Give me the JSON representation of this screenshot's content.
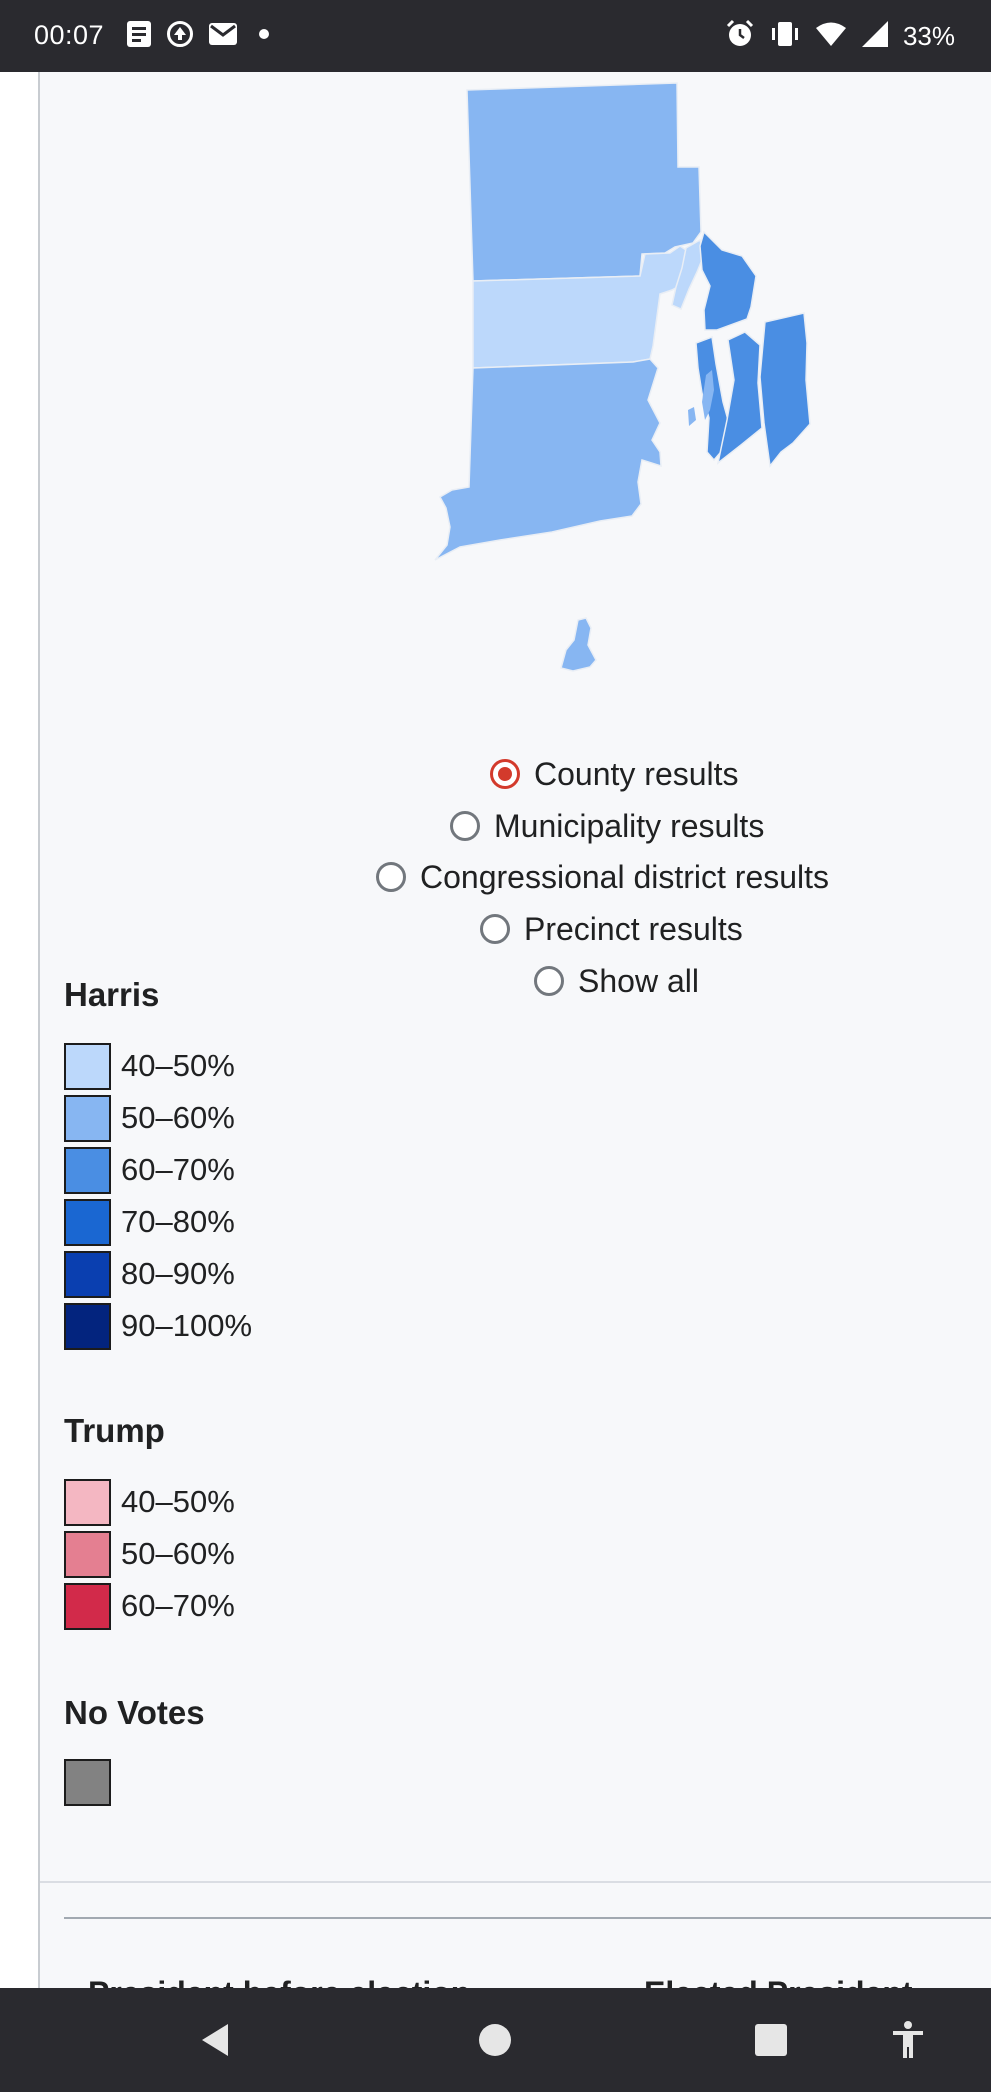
{
  "status_bar": {
    "time": "00:07",
    "battery": "33%",
    "left_icons": [
      "notes-icon",
      "sync-icon",
      "mail-icon",
      "dot-icon"
    ],
    "right_icons": [
      "alarm-icon",
      "vibrate-icon",
      "wifi-icon",
      "signal-icon"
    ]
  },
  "map": {
    "counties": [
      {
        "name": "Providence",
        "color": "#87b6f2",
        "bin": "50–60%"
      },
      {
        "name": "Kent",
        "color": "#bcd8fb",
        "bin": "40–50%"
      },
      {
        "name": "Washington",
        "color": "#87b6f2",
        "bin": "50–60%"
      },
      {
        "name": "Bristol",
        "color": "#bcd8fb",
        "bin": "40–50%"
      },
      {
        "name": "Newport",
        "color": "#4a8ee3",
        "bin": "60–70%"
      }
    ]
  },
  "view_options": {
    "selected": "County results",
    "items": [
      {
        "label": "County results",
        "checked": true
      },
      {
        "label": "Municipality results",
        "checked": false
      },
      {
        "label": "Congressional district results",
        "checked": false
      },
      {
        "label": "Precinct results",
        "checked": false
      },
      {
        "label": "Show all",
        "checked": false
      }
    ]
  },
  "legend": {
    "harris": {
      "title": "Harris",
      "items": [
        {
          "label": "40–50%",
          "color": "#bcd8fb"
        },
        {
          "label": "50–60%",
          "color": "#87b6f2"
        },
        {
          "label": "60–70%",
          "color": "#4a8ee3"
        },
        {
          "label": "70–80%",
          "color": "#1a67d2"
        },
        {
          "label": "80–90%",
          "color": "#0a3fb0"
        },
        {
          "label": "90–100%",
          "color": "#03247e"
        }
      ]
    },
    "trump": {
      "title": "Trump",
      "items": [
        {
          "label": "40–50%",
          "color": "#f4b7c2"
        },
        {
          "label": "50–60%",
          "color": "#e47f91"
        },
        {
          "label": "60–70%",
          "color": "#d22a4a"
        }
      ]
    },
    "no_votes": {
      "title": "No Votes",
      "color": "#828282"
    }
  },
  "infobox": {
    "left_heading": "President before election",
    "right_heading": "Elected President"
  },
  "nav_bar": {
    "buttons": [
      "back-icon",
      "home-icon",
      "recents-icon",
      "accessibility-icon"
    ]
  }
}
